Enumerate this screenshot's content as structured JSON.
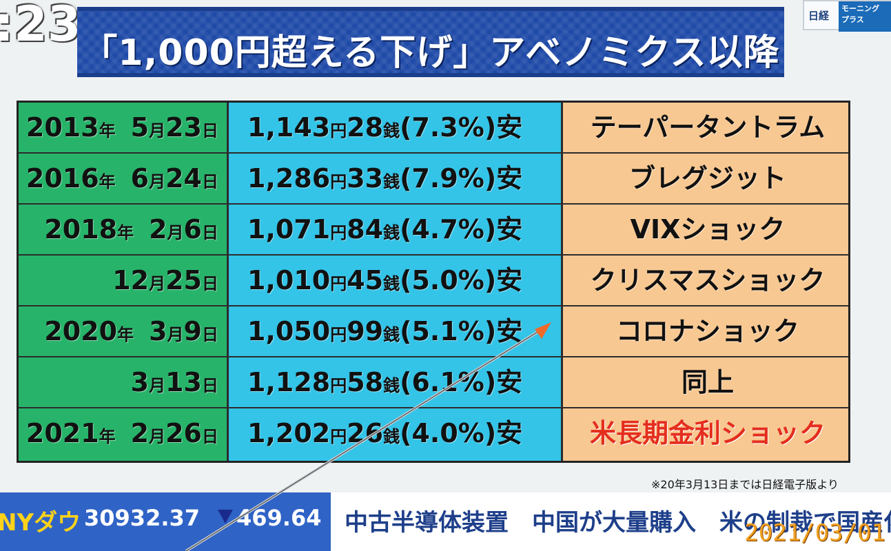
{
  "clock": ":23",
  "logo": {
    "left": "日経",
    "right": "モーニング プラス"
  },
  "title": "「1,000円超える下げ」アベノミクス以降",
  "rows": [
    {
      "year": "2013",
      "ym": "年",
      "month": "5",
      "mm": "月",
      "day": "23",
      "dm": "日",
      "amt_yen": "1,143",
      "yen": "円",
      "amt_sen": "28",
      "sen": "銭",
      "pct": "(7.3%)安",
      "event": "テーパータントラム"
    },
    {
      "year": "2016",
      "ym": "年",
      "month": "6",
      "mm": "月",
      "day": "24",
      "dm": "日",
      "amt_yen": "1,286",
      "yen": "円",
      "amt_sen": "33",
      "sen": "銭",
      "pct": "(7.9%)安",
      "event": "ブレグジット"
    },
    {
      "year": "2018",
      "ym": "年",
      "month": "2",
      "mm": "月",
      "day": "6",
      "dm": "日",
      "amt_yen": "1,071",
      "yen": "円",
      "amt_sen": "84",
      "sen": "銭",
      "pct": "(4.7%)安",
      "event": "VIXショック"
    },
    {
      "year": "",
      "ym": "",
      "month": "12",
      "mm": "月",
      "day": "25",
      "dm": "日",
      "amt_yen": "1,010",
      "yen": "円",
      "amt_sen": "45",
      "sen": "銭",
      "pct": "(5.0%)安",
      "event": "クリスマスショック"
    },
    {
      "year": "2020",
      "ym": "年",
      "month": "3",
      "mm": "月",
      "day": "9",
      "dm": "日",
      "amt_yen": "1,050",
      "yen": "円",
      "amt_sen": "99",
      "sen": "銭",
      "pct": "(5.1%)安",
      "event": "コロナショック"
    },
    {
      "year": "",
      "ym": "",
      "month": "3",
      "mm": "月",
      "day": "13",
      "dm": "日",
      "amt_yen": "1,128",
      "yen": "円",
      "amt_sen": "58",
      "sen": "銭",
      "pct": "(6.1%)安",
      "event": "同上"
    },
    {
      "year": "2021",
      "ym": "年",
      "month": "2",
      "mm": "月",
      "day": "26",
      "dm": "日",
      "amt_yen": "1,202",
      "yen": "円",
      "amt_sen": "26",
      "sen": "銭",
      "pct": "(4.0%)安",
      "event": "米長期金利ショック"
    }
  ],
  "colors": {
    "highlight_event": "#e42e1e",
    "date_col": "#27b46a",
    "amount_col": "#33c4e8",
    "event_col": "#f8c892"
  },
  "footnote": "※20年3月13日までは日経電子版より",
  "ticker": {
    "label": "NYダウ",
    "value": "30932.37",
    "direction_icon": "down-triangle-icon",
    "change": "469.64",
    "news": "中古半導体装置　中国が大量購入　米の制裁で国産化急"
  },
  "datestamp": "2021/03/01"
}
